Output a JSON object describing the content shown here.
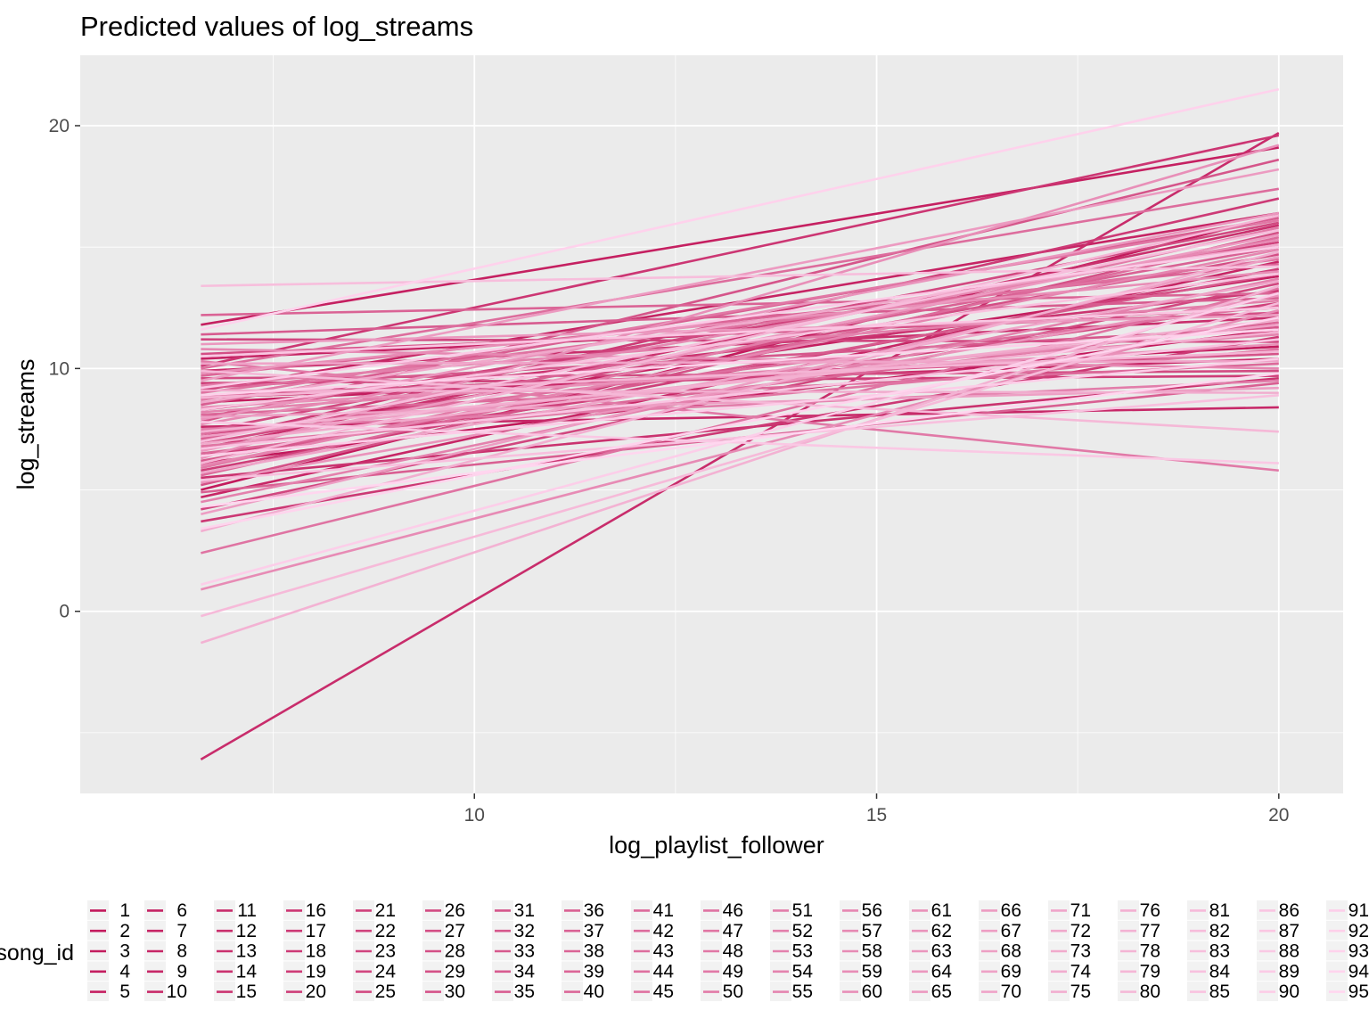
{
  "chart_data": {
    "type": "line",
    "title": "Predicted values of log_streams",
    "xlabel": "log_playlist_follower",
    "ylabel": "log_streams",
    "xlim": [
      5.1,
      20.8
    ],
    "ylim": [
      -7.5,
      22.9
    ],
    "x_ticks": [
      "10",
      "15",
      "20"
    ],
    "y_ticks": [
      "0",
      "10",
      "20"
    ],
    "x_ticks_values": [
      10,
      15,
      20
    ],
    "y_ticks_values": [
      0,
      10,
      20
    ],
    "x_minor_values": [
      7.5,
      12.5,
      17.5
    ],
    "y_minor_values": [
      -5,
      5,
      15
    ],
    "grid": true,
    "legend_title": "song_id",
    "legend_placement": "bottom",
    "palette": {
      "start": "#c2185b",
      "end": "#ffd6ef"
    },
    "panel_background": "#ebebeb",
    "series_names": [
      "1",
      "2",
      "3",
      "4",
      "5",
      "6",
      "7",
      "8",
      "9",
      "10",
      "11",
      "12",
      "13",
      "14",
      "15",
      "16",
      "17",
      "18",
      "19",
      "20",
      "21",
      "22",
      "23",
      "24",
      "25",
      "26",
      "27",
      "28",
      "29",
      "30",
      "31",
      "32",
      "33",
      "34",
      "35",
      "36",
      "37",
      "38",
      "39",
      "40",
      "41",
      "42",
      "43",
      "44",
      "45",
      "46",
      "47",
      "48",
      "49",
      "50",
      "51",
      "52",
      "53",
      "54",
      "55",
      "56",
      "57",
      "58",
      "59",
      "60",
      "61",
      "62",
      "63",
      "64",
      "65",
      "66",
      "67",
      "68",
      "69",
      "70",
      "71",
      "72",
      "73",
      "74",
      "75",
      "76",
      "77",
      "78",
      "79",
      "80",
      "81",
      "82",
      "83",
      "84",
      "85",
      "86",
      "87",
      "88",
      "89",
      "90",
      "91",
      "92",
      "93",
      "94",
      "95"
    ],
    "x_start": 6.6,
    "x_end": 20.0,
    "y_start": [
      6.1,
      5.0,
      8.6,
      7.2,
      11.8,
      10.4,
      9.1,
      4.7,
      7.6,
      8.8,
      -6.1,
      9.9,
      6.7,
      5.5,
      8.3,
      10.1,
      3.7,
      7.0,
      9.4,
      5.8,
      6.4,
      8.0,
      11.2,
      4.2,
      7.4,
      9.6,
      6.9,
      10.6,
      5.2,
      8.9,
      7.8,
      9.2,
      6.2,
      11.4,
      8.5,
      4.9,
      7.1,
      12.2,
      9.7,
      6.5,
      8.1,
      5.6,
      10.0,
      7.3,
      9.0,
      2.4,
      6.8,
      8.7,
      10.3,
      5.9,
      7.5,
      9.3,
      4.5,
      8.2,
      6.0,
      10.8,
      7.7,
      0.9,
      9.8,
      6.3,
      8.4,
      5.3,
      7.9,
      11.0,
      6.6,
      9.5,
      4.0,
      8.0,
      7.2,
      10.2,
      5.7,
      8.6,
      6.9,
      9.1,
      3.3,
      7.4,
      -1.3,
      8.8,
      6.1,
      9.9,
      -0.2,
      7.0,
      13.4,
      5.4,
      8.3,
      6.7,
      10.5,
      7.8,
      9.2,
      6.4,
      1.1,
      8.9,
      11.6,
      3.4,
      4.3
    ],
    "y_end": [
      11.6,
      16.3,
      10.9,
      13.8,
      19.1,
      12.5,
      16.4,
      14.4,
      8.4,
      10.4,
      19.7,
      12.1,
      15.9,
      9.6,
      13.2,
      19.6,
      11.3,
      17.0,
      9.7,
      14.1,
      12.7,
      15.2,
      11.1,
      13.5,
      16.0,
      9.9,
      14.7,
      12.3,
      15.6,
      10.6,
      18.6,
      11.7,
      13.9,
      12.9,
      16.2,
      9.4,
      15.0,
      13.1,
      14.3,
      11.9,
      10.2,
      15.4,
      17.4,
      12.6,
      14.5,
      13.3,
      10.8,
      16.1,
      5.8,
      15.8,
      9.5,
      12.8,
      13.7,
      11.4,
      14.9,
      10.0,
      15.3,
      12.4,
      14.0,
      19.2,
      11.0,
      13.0,
      16.4,
      12.2,
      15.5,
      18.2,
      14.6,
      9.2,
      11.8,
      10.3,
      13.6,
      15.1,
      12.0,
      9.0,
      14.8,
      11.5,
      13.4,
      10.7,
      16.3,
      7.4,
      12.7,
      15.7,
      14.2,
      8.9,
      13.9,
      11.2,
      12.5,
      6.1,
      15.0,
      10.4,
      13.1,
      11.6,
      21.5,
      12.1,
      9.8
    ]
  }
}
